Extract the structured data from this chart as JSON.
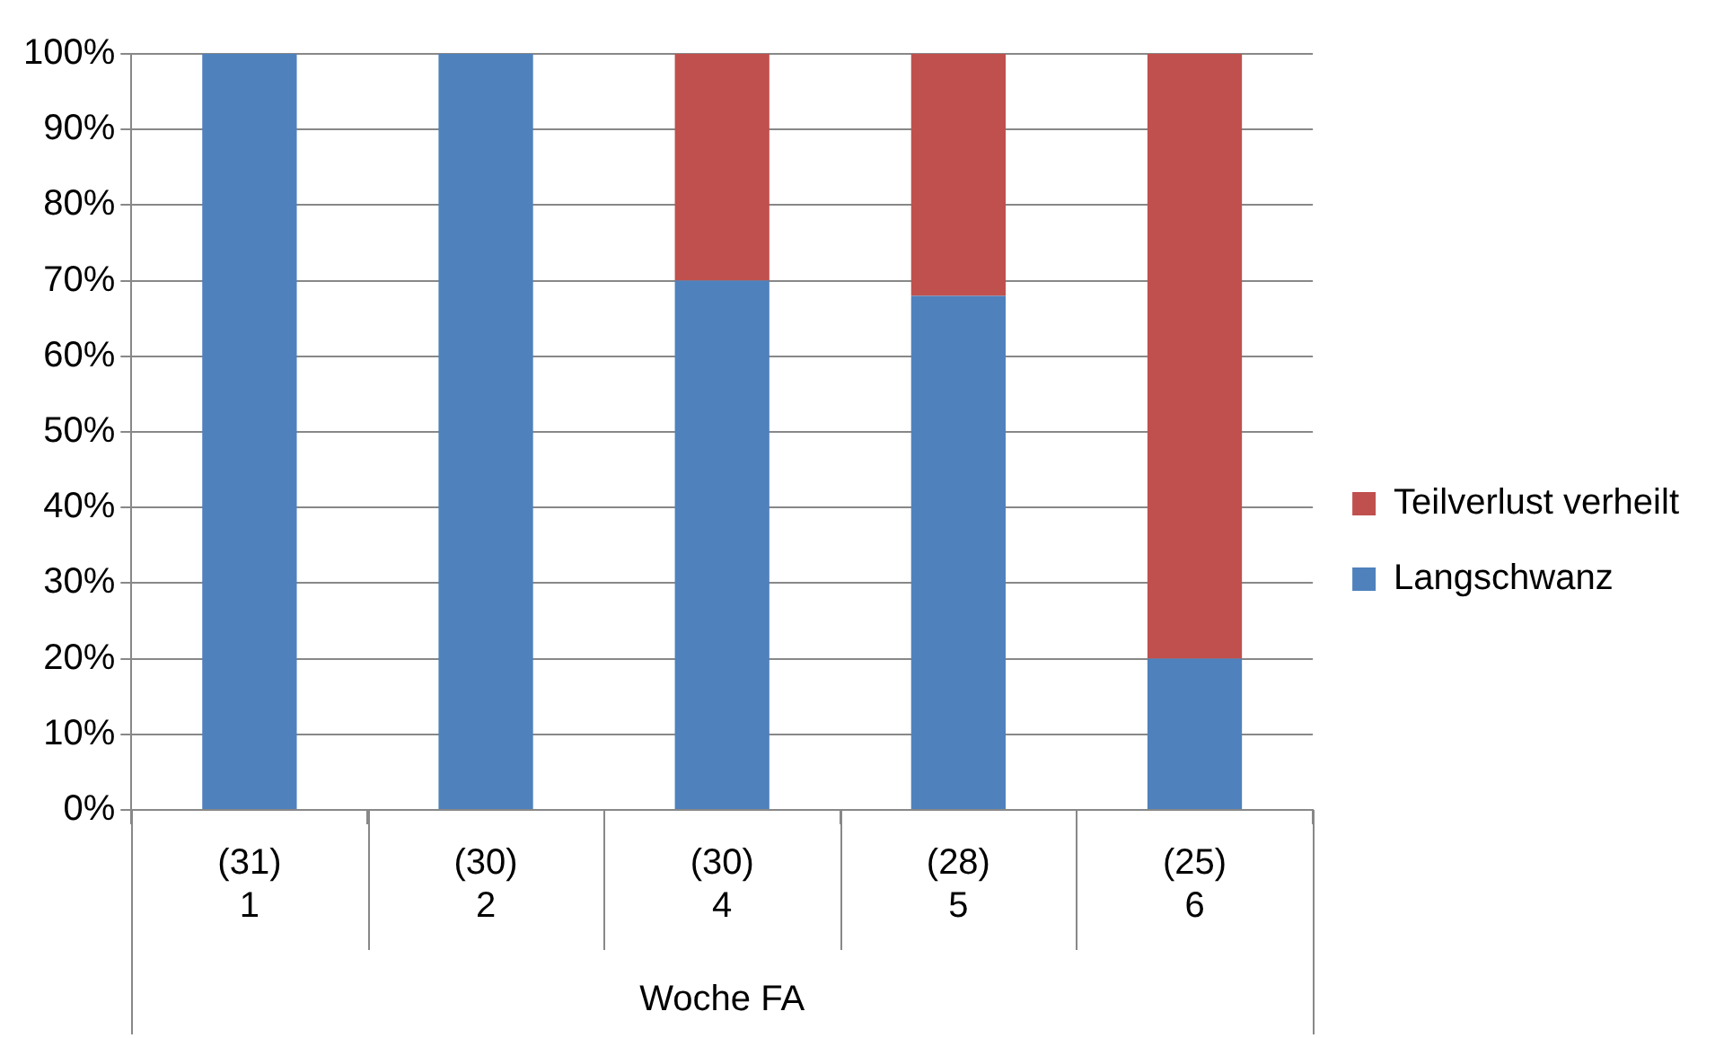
{
  "chart_data": {
    "type": "bar",
    "stacked": true,
    "xlabel": "Woche FA",
    "categories": [
      "(31)\n1",
      "(30)\n2",
      "(30)\n4",
      "(28)\n5",
      "(25)\n6"
    ],
    "series": [
      {
        "name": "Langschwanz",
        "color": "#4f81bd",
        "values": [
          100,
          100,
          70,
          68,
          20
        ]
      },
      {
        "name": "Teilverlust verheilt",
        "color": "#c0504d",
        "values": [
          0,
          0,
          30,
          32,
          80
        ]
      }
    ],
    "ylim": [
      0,
      100
    ],
    "yticks": [
      {
        "value": 0,
        "label": "0%"
      },
      {
        "value": 10,
        "label": "10%"
      },
      {
        "value": 20,
        "label": "20%"
      },
      {
        "value": 30,
        "label": "30%"
      },
      {
        "value": 40,
        "label": "40%"
      },
      {
        "value": 50,
        "label": "50%"
      },
      {
        "value": 60,
        "label": "60%"
      },
      {
        "value": 70,
        "label": "70%"
      },
      {
        "value": 80,
        "label": "80%"
      },
      {
        "value": 90,
        "label": "90%"
      },
      {
        "value": 100,
        "label": "100%"
      }
    ],
    "grid": "y",
    "legend": "right"
  }
}
